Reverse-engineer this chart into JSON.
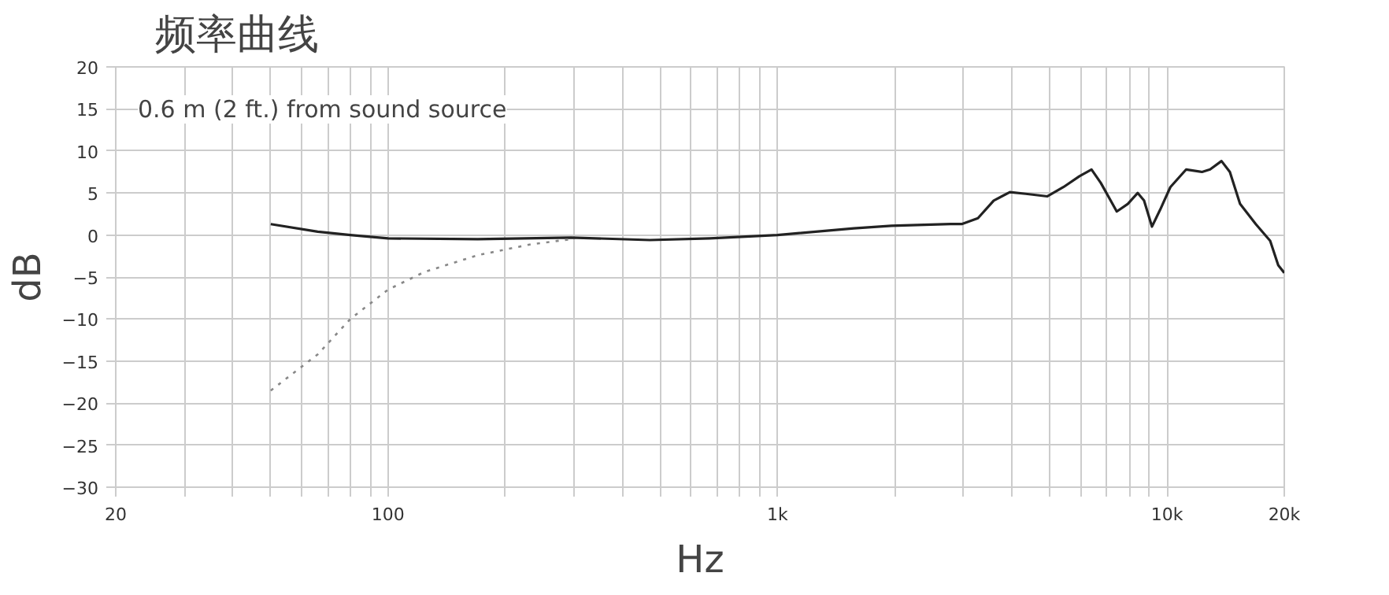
{
  "chart_data": {
    "type": "line",
    "title": "频率曲线",
    "xlabel": "Hz",
    "ylabel": "dB",
    "log": "x",
    "grid": true,
    "annotations": [
      "0.6 m (2 ft.) from sound source"
    ],
    "xlim": [
      20,
      20000
    ],
    "ylim": [
      -30,
      20
    ],
    "xticks": [
      20,
      {
        "value": 30,
        "label": null
      },
      {
        "value": 40,
        "label": null
      },
      {
        "value": 50,
        "label": null
      },
      {
        "value": 60,
        "label": null
      },
      {
        "value": 70,
        "label": null
      },
      {
        "value": 80,
        "label": null
      },
      {
        "value": 90,
        "label": null
      },
      100,
      {
        "value": 200,
        "label": null
      },
      {
        "value": 300,
        "label": null
      },
      {
        "value": 400,
        "label": null
      },
      {
        "value": 500,
        "label": null
      },
      {
        "value": 600,
        "label": null
      },
      {
        "value": 700,
        "label": null
      },
      {
        "value": 800,
        "label": null
      },
      {
        "value": 900,
        "label": null
      },
      {
        "value": 1000,
        "label": "1k"
      },
      {
        "value": 2000,
        "label": null
      },
      {
        "value": 3000,
        "label": null
      },
      {
        "value": 4000,
        "label": null
      },
      {
        "value": 5000,
        "label": null
      },
      {
        "value": 6000,
        "label": null
      },
      {
        "value": 7000,
        "label": null
      },
      {
        "value": 8000,
        "label": null
      },
      {
        "value": 9000,
        "label": null
      },
      {
        "value": 10000,
        "label": "10k"
      },
      {
        "value": 20000,
        "label": "20k"
      }
    ],
    "yticks": [
      -30,
      -25,
      -20,
      -15,
      -10,
      -5,
      0,
      5,
      10,
      15,
      20
    ],
    "series": [
      {
        "color": "#222222",
        "line_style": "solid",
        "x": [
          50,
          66,
          80,
          100,
          170,
          295,
          470,
          670,
          1000,
          1570,
          1960,
          2780,
          2970,
          3270,
          3590,
          3950,
          4340,
          4930,
          5420,
          5960,
          6400,
          6760,
          7430,
          7930,
          8410,
          8730,
          9150,
          9600,
          10200,
          11200,
          12300,
          12900,
          13800,
          14500,
          15400,
          16900,
          18400,
          19300,
          20000
        ],
        "values": [
          1.3,
          0.4,
          0,
          -0.4,
          -0.5,
          -0.3,
          -0.6,
          -0.4,
          0,
          0.8,
          1.1,
          1.3,
          1.3,
          2.0,
          4.1,
          5.1,
          4.9,
          4.6,
          5.7,
          7.0,
          7.8,
          6.2,
          2.8,
          3.7,
          5.0,
          4.1,
          1.0,
          3.0,
          5.7,
          7.8,
          7.5,
          7.8,
          8.8,
          7.5,
          3.7,
          1.3,
          -0.7,
          -3.6,
          -4.5
        ]
      },
      {
        "color": "#888888",
        "line_style": "dotted",
        "x": [
          50,
          66,
          80,
          100,
          124,
          170,
          233,
          295
        ],
        "values": [
          -18.5,
          -14.2,
          -10,
          -6.5,
          -4.4,
          -2.4,
          -1.1,
          -0.5
        ]
      }
    ]
  }
}
